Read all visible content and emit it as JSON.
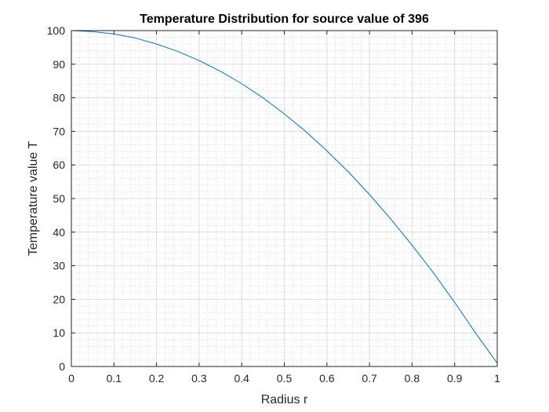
{
  "chart_data": {
    "type": "line",
    "title": "Temperature Distribution for source value of 396",
    "xlabel": "Radius r",
    "ylabel": "Temperature value T",
    "xlim": [
      0,
      1
    ],
    "ylim": [
      0,
      100
    ],
    "xticks": [
      "0",
      "0.1",
      "0.2",
      "0.3",
      "0.4",
      "0.5",
      "0.6",
      "0.7",
      "0.8",
      "0.9",
      "1"
    ],
    "yticks": [
      "0",
      "10",
      "20",
      "30",
      "40",
      "50",
      "60",
      "70",
      "80",
      "90",
      "100"
    ],
    "grid": true,
    "minor_grid": true,
    "line_color": "#0072BD",
    "series": [
      {
        "x": [
          0,
          0.05,
          0.1,
          0.15,
          0.2,
          0.25,
          0.3,
          0.35,
          0.4,
          0.45,
          0.5,
          0.55,
          0.6,
          0.65,
          0.7,
          0.75,
          0.8,
          0.85,
          0.9,
          0.95,
          1.0
        ],
        "values": [
          100,
          99.7,
          99.0,
          97.8,
          96.0,
          93.8,
          91.1,
          87.9,
          84.2,
          80.0,
          75.2,
          70.0,
          64.2,
          58.0,
          51.2,
          43.9,
          36.1,
          27.9,
          19.1,
          9.8,
          1.0
        ]
      }
    ]
  }
}
